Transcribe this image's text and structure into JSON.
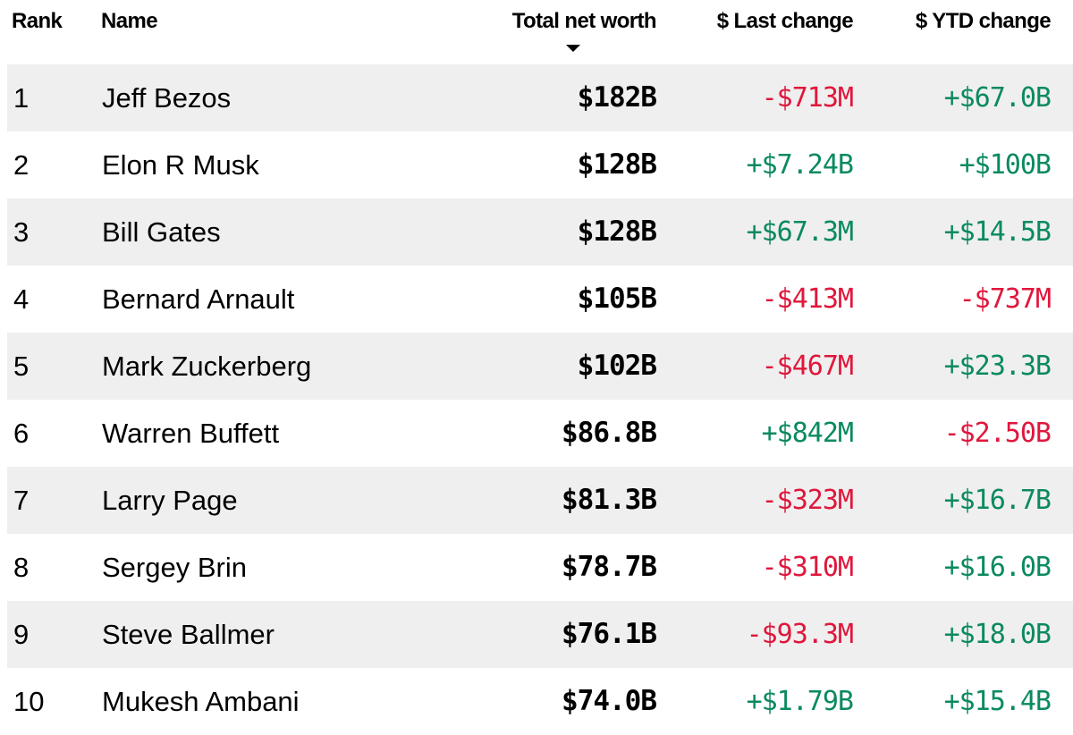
{
  "table": {
    "columns": [
      {
        "key": "rank",
        "label": "Rank"
      },
      {
        "key": "name",
        "label": "Name"
      },
      {
        "key": "total",
        "label": "Total net worth",
        "sorted": "descending"
      },
      {
        "key": "last",
        "label": "$ Last change"
      },
      {
        "key": "ytd",
        "label": "$ YTD change"
      }
    ],
    "sort_indicator": "sort-descending-arrow",
    "colors": {
      "positive": "#0b8a5e",
      "negative": "#e0173c",
      "stripe": "#efefef"
    },
    "rows": [
      {
        "rank": "1",
        "name": "Jeff Bezos",
        "total": "$182B",
        "last": "-$713M",
        "last_dir": "neg",
        "ytd": "+$67.0B",
        "ytd_dir": "pos"
      },
      {
        "rank": "2",
        "name": "Elon R Musk",
        "total": "$128B",
        "last": "+$7.24B",
        "last_dir": "pos",
        "ytd": "+$100B",
        "ytd_dir": "pos"
      },
      {
        "rank": "3",
        "name": "Bill Gates",
        "total": "$128B",
        "last": "+$67.3M",
        "last_dir": "pos",
        "ytd": "+$14.5B",
        "ytd_dir": "pos"
      },
      {
        "rank": "4",
        "name": "Bernard Arnault",
        "total": "$105B",
        "last": "-$413M",
        "last_dir": "neg",
        "ytd": "-$737M",
        "ytd_dir": "neg"
      },
      {
        "rank": "5",
        "name": "Mark Zuckerberg",
        "total": "$102B",
        "last": "-$467M",
        "last_dir": "neg",
        "ytd": "+$23.3B",
        "ytd_dir": "pos"
      },
      {
        "rank": "6",
        "name": "Warren Buffett",
        "total": "$86.8B",
        "last": "+$842M",
        "last_dir": "pos",
        "ytd": "-$2.50B",
        "ytd_dir": "neg"
      },
      {
        "rank": "7",
        "name": "Larry Page",
        "total": "$81.3B",
        "last": "-$323M",
        "last_dir": "neg",
        "ytd": "+$16.7B",
        "ytd_dir": "pos"
      },
      {
        "rank": "8",
        "name": "Sergey Brin",
        "total": "$78.7B",
        "last": "-$310M",
        "last_dir": "neg",
        "ytd": "+$16.0B",
        "ytd_dir": "pos"
      },
      {
        "rank": "9",
        "name": "Steve Ballmer",
        "total": "$76.1B",
        "last": "-$93.3M",
        "last_dir": "neg",
        "ytd": "+$18.0B",
        "ytd_dir": "pos"
      },
      {
        "rank": "10",
        "name": "Mukesh Ambani",
        "total": "$74.0B",
        "last": "+$1.79B",
        "last_dir": "pos",
        "ytd": "+$15.4B",
        "ytd_dir": "pos"
      }
    ]
  }
}
